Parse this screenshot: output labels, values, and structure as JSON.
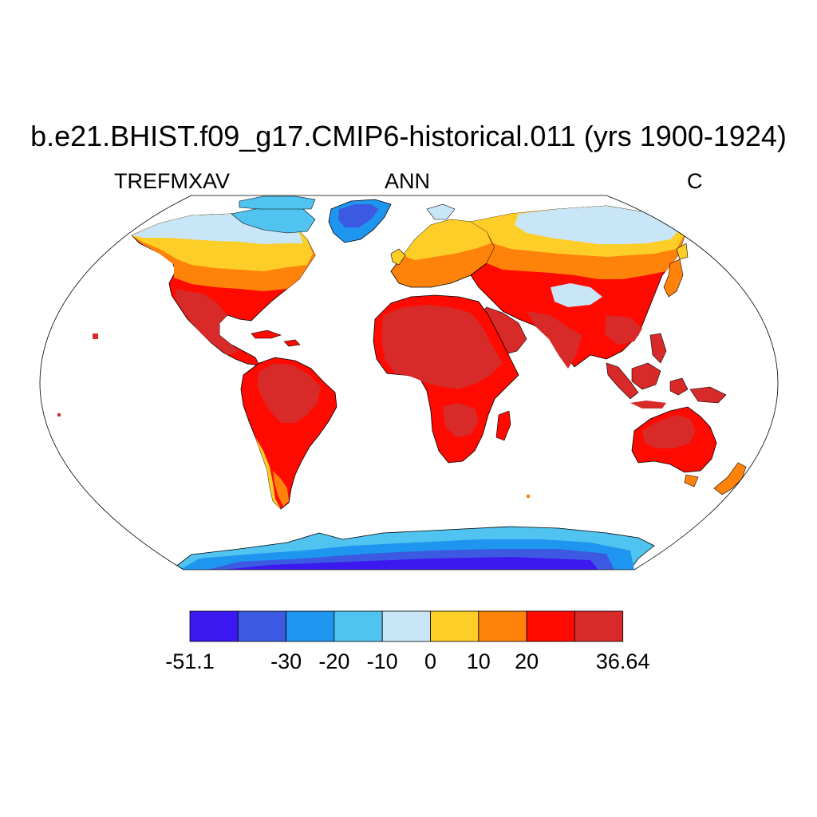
{
  "title": "b.e21.BHIST.f09_g17.CMIP6-historical.011 (yrs 1900-1924)",
  "left_label": "TREFMXAV",
  "center_label": "ANN",
  "right_label": "C",
  "map": {
    "projection": "Robinson",
    "ocean_color": "#ffffff",
    "coastline_color": "#000000"
  },
  "colorbar": {
    "bins": [
      {
        "color": "#3c19f0",
        "min": -51.1,
        "max": -40
      },
      {
        "color": "#3c5ae1",
        "min": -40,
        "max": -30
      },
      {
        "color": "#1e96f0",
        "min": -30,
        "max": -20
      },
      {
        "color": "#50c3f0",
        "min": -20,
        "max": -10
      },
      {
        "color": "#c8e6f7",
        "min": -10,
        "max": 0
      },
      {
        "color": "#fdcd28",
        "min": 0,
        "max": 10
      },
      {
        "color": "#ff820a",
        "min": 10,
        "max": 20
      },
      {
        "color": "#ff0a00",
        "min": 20,
        "max": 30
      },
      {
        "color": "#d72a29",
        "min": 30,
        "max": 36.64
      }
    ],
    "tick_labels": [
      {
        "text": "-51.1",
        "at_boundary": 0
      },
      {
        "text": "-30",
        "at_boundary": 2
      },
      {
        "text": "-20",
        "at_boundary": 3
      },
      {
        "text": "-10",
        "at_boundary": 4
      },
      {
        "text": "0",
        "at_boundary": 5
      },
      {
        "text": "10",
        "at_boundary": 6
      },
      {
        "text": "20",
        "at_boundary": 7
      },
      {
        "text": "36.64",
        "at_boundary": 9
      }
    ]
  }
}
